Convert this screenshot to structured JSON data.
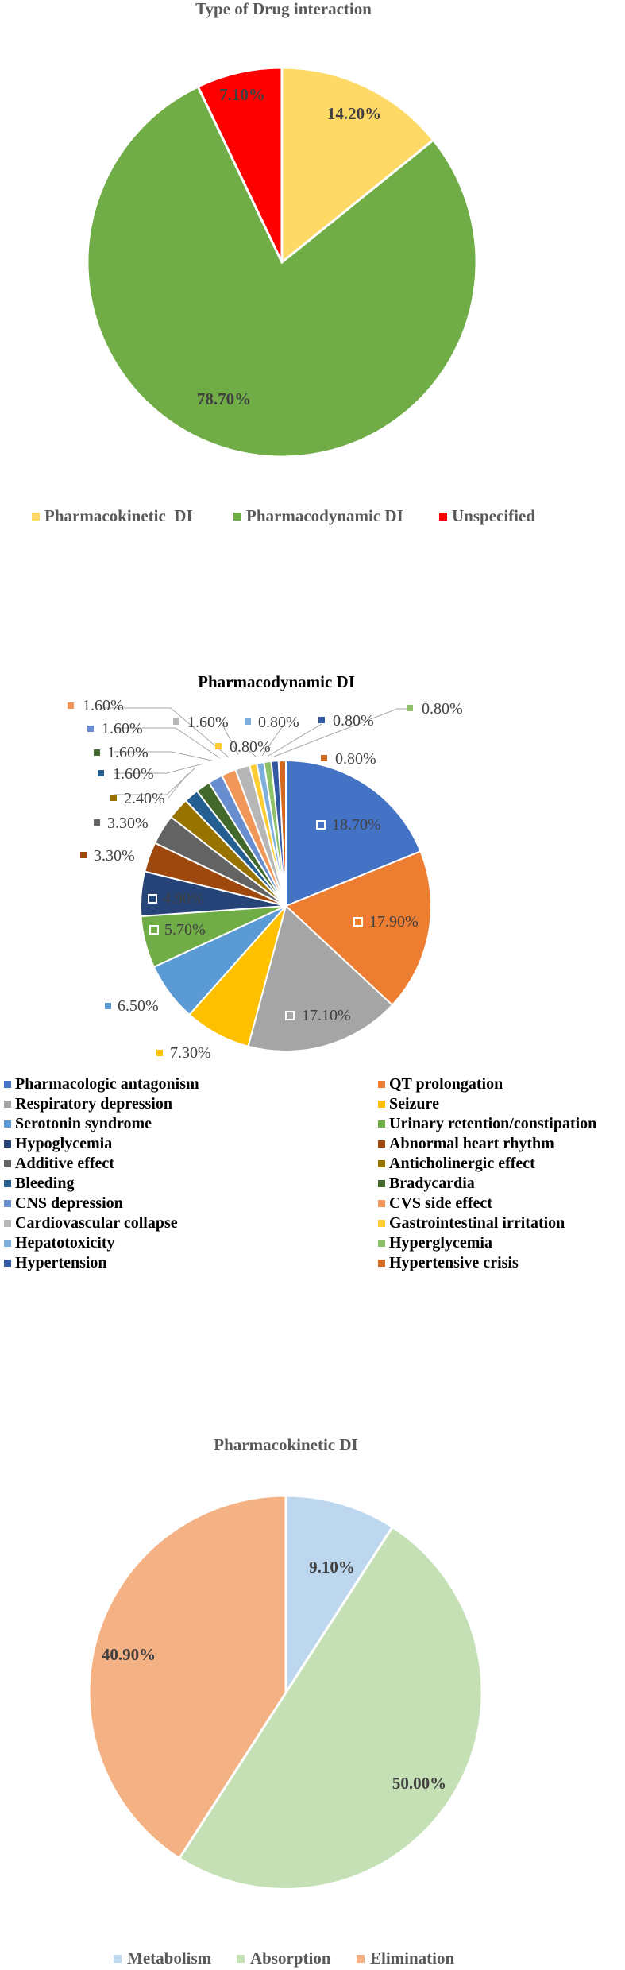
{
  "chart_data": [
    {
      "type": "pie",
      "title": "Type of Drug interaction",
      "slices": [
        {
          "label": "Pharmacokinetic  DI",
          "value": 14.2,
          "value_label": "14.20%",
          "color": "#FFD966"
        },
        {
          "label": "Pharmacodynamic DI",
          "value": 78.7,
          "value_label": "78.70%",
          "color": "#70AD47"
        },
        {
          "label": "Unspecified",
          "value": 7.1,
          "value_label": "7.10%",
          "color": "#FF0000"
        }
      ],
      "legend_position": "bottom"
    },
    {
      "type": "pie",
      "title": "Pharmacodynamic DI",
      "slices": [
        {
          "label": "Pharmacologic antagonism",
          "value": 18.7,
          "value_label": "18.70%",
          "color": "#4472C4"
        },
        {
          "label": "QT prolongation",
          "value": 17.9,
          "value_label": "17.90%",
          "color": "#ED7D31"
        },
        {
          "label": "Respiratory depression",
          "value": 17.1,
          "value_label": "17.10%",
          "color": "#A5A5A5"
        },
        {
          "label": "Seizure",
          "value": 7.3,
          "value_label": "7.30%",
          "color": "#FFC000"
        },
        {
          "label": "Serotonin syndrome",
          "value": 6.5,
          "value_label": "6.50%",
          "color": "#5B9BD5"
        },
        {
          "label": "Urinary retention/constipation",
          "value": 5.7,
          "value_label": "5.70%",
          "color": "#70AD47"
        },
        {
          "label": "Hypoglycemia",
          "value": 4.9,
          "value_label": "4.90%",
          "color": "#264478"
        },
        {
          "label": "Abnormal heart rhythm",
          "value": 3.3,
          "value_label": "3.30%",
          "color": "#9E480E"
        },
        {
          "label": "Additive effect",
          "value": 3.3,
          "value_label": "3.30%",
          "color": "#636363"
        },
        {
          "label": "Anticholinergic effect",
          "value": 2.4,
          "value_label": "2.40%",
          "color": "#997300"
        },
        {
          "label": "Bleeding",
          "value": 1.6,
          "value_label": "1.60%",
          "color": "#255E91"
        },
        {
          "label": "Bradycardia",
          "value": 1.6,
          "value_label": "1.60%",
          "color": "#43682B"
        },
        {
          "label": "CNS depression",
          "value": 1.6,
          "value_label": "1.60%",
          "color": "#698ED0"
        },
        {
          "label": "CVS side effect",
          "value": 1.6,
          "value_label": "1.60%",
          "color": "#F1975A"
        },
        {
          "label": "Cardiovascular collapse",
          "value": 1.6,
          "value_label": "1.60%",
          "color": "#B7B7B7"
        },
        {
          "label": "Gastrointestinal irritation",
          "value": 0.8,
          "value_label": "0.80%",
          "color": "#FFCD33"
        },
        {
          "label": "Hepatotoxicity",
          "value": 0.8,
          "value_label": "0.80%",
          "color": "#7CAFDD"
        },
        {
          "label": "Hyperglycemia",
          "value": 0.8,
          "value_label": "0.80%",
          "color": "#8CC168"
        },
        {
          "label": "Hypertension",
          "value": 0.8,
          "value_label": "0.80%",
          "color": "#335AA1"
        },
        {
          "label": "Hypertensive crisis",
          "value": 0.8,
          "value_label": "0.80%",
          "color": "#D2691E"
        }
      ],
      "legend_position": "bottom"
    },
    {
      "type": "pie",
      "title": "Pharmacokinetic DI",
      "slices": [
        {
          "label": "Metabolism",
          "value": 9.1,
          "value_label": "9.10%",
          "color": "#BDD7EE"
        },
        {
          "label": "Absorption",
          "value": 50.0,
          "value_label": "50.00%",
          "color": "#C5E0B4"
        },
        {
          "label": "Elimination",
          "value": 40.9,
          "value_label": "40.90%",
          "color": "#F4B183"
        }
      ],
      "legend_position": "bottom"
    }
  ]
}
